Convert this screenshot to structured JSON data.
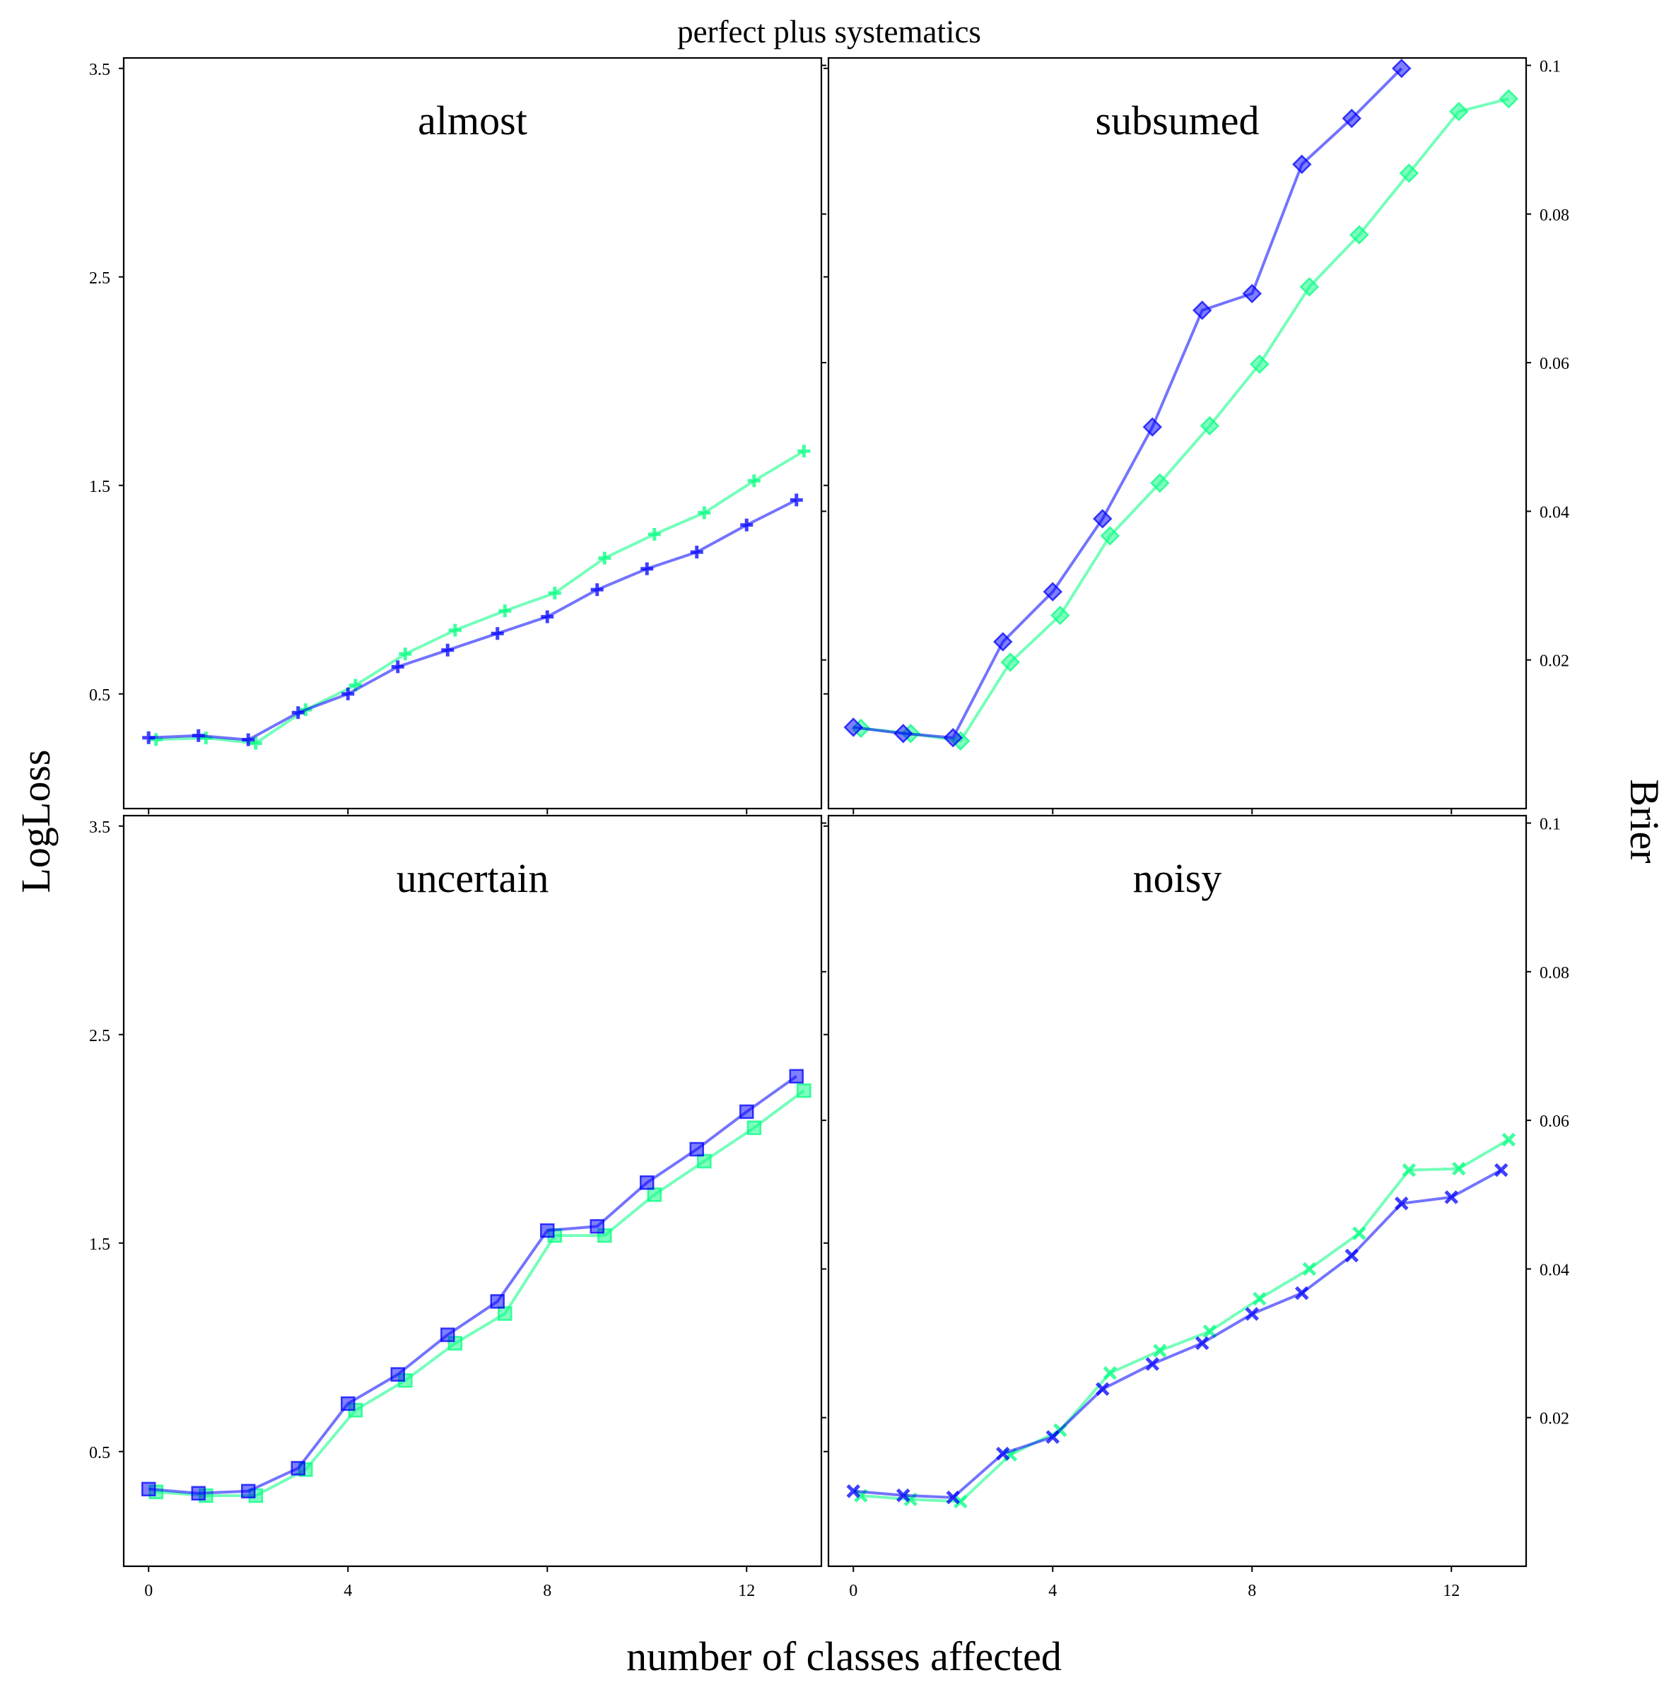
{
  "chart_data": {
    "type": "line",
    "title": "perfect plus systematics",
    "xlabel": "number of classes affected",
    "ylabel_left": "LogLoss",
    "ylabel_right": "Brier",
    "colors": {
      "logloss": "#0000ff",
      "brier": "#00ff7f"
    },
    "xlim": [
      -0.5,
      13.5
    ],
    "ylim_logloss": [
      -0.05,
      3.55
    ],
    "ylim_brier": [
      0.0,
      0.101
    ],
    "x_ticks": [
      0,
      4,
      8,
      12
    ],
    "y_ticks_logloss": [
      0.5,
      1.5,
      2.5,
      3.5
    ],
    "y_ticks_brier": [
      0.02,
      0.04,
      0.06,
      0.08,
      0.1
    ],
    "x_tick_labels": [
      "0",
      "4",
      "8",
      "12"
    ],
    "y_tick_labels_logloss": [
      "0.5",
      "1.5",
      "2.5",
      "3.5"
    ],
    "y_tick_labels_brier": [
      "0.02",
      "0.04",
      "0.06",
      "0.08",
      "0.1"
    ],
    "grid": false,
    "panels": [
      {
        "title": "almost",
        "marker": "plus",
        "series": [
          {
            "metric": "logloss",
            "x": [
              0,
              1,
              2,
              3,
              4,
              5,
              6,
              7,
              8,
              9,
              10,
              11,
              12,
              13
            ],
            "values": [
              0.29,
              0.3,
              0.28,
              0.41,
              0.5,
              0.63,
              0.71,
              0.79,
              0.87,
              1.0,
              1.1,
              1.18,
              1.31,
              1.43
            ]
          },
          {
            "metric": "brier",
            "x": [
              0,
              1,
              2,
              3,
              4,
              5,
              6,
              7,
              8,
              9,
              10,
              11,
              12,
              13
            ],
            "values": [
              0.0093,
              0.0095,
              0.0088,
              0.0133,
              0.0166,
              0.0208,
              0.024,
              0.0266,
              0.029,
              0.0337,
              0.0369,
              0.0398,
              0.0441,
              0.0481
            ]
          }
        ]
      },
      {
        "title": "subsumed",
        "marker": "diamond",
        "series": [
          {
            "metric": "logloss",
            "x": [
              0,
              1,
              2,
              3,
              4,
              5,
              6,
              7,
              8,
              9,
              10,
              11
            ],
            "values": [
              0.34,
              0.31,
              0.29,
              0.75,
              0.99,
              1.34,
              1.78,
              2.34,
              2.42,
              3.04,
              3.26,
              3.5
            ]
          },
          {
            "metric": "brier",
            "x": [
              0,
              1,
              2,
              3,
              4,
              5,
              6,
              7,
              8,
              9,
              10,
              11,
              12,
              13
            ],
            "values": [
              0.0108,
              0.0101,
              0.0091,
              0.0197,
              0.026,
              0.0367,
              0.0438,
              0.0515,
              0.0598,
              0.0702,
              0.0772,
              0.0855,
              0.0938,
              0.0955
            ]
          }
        ]
      },
      {
        "title": "uncertain",
        "marker": "square",
        "series": [
          {
            "metric": "logloss",
            "x": [
              0,
              1,
              2,
              3,
              4,
              5,
              6,
              7,
              8,
              9,
              10,
              11,
              12,
              13
            ],
            "values": [
              0.32,
              0.3,
              0.31,
              0.42,
              0.73,
              0.87,
              1.06,
              1.22,
              1.56,
              1.58,
              1.79,
              1.95,
              2.13,
              2.3
            ]
          },
          {
            "metric": "brier",
            "x": [
              0,
              1,
              2,
              3,
              4,
              5,
              6,
              7,
              8,
              9,
              10,
              11,
              12,
              13
            ],
            "values": [
              0.01,
              0.0095,
              0.0095,
              0.013,
              0.021,
              0.025,
              0.03,
              0.034,
              0.0445,
              0.0445,
              0.05,
              0.0545,
              0.059,
              0.064
            ]
          }
        ]
      },
      {
        "title": "noisy",
        "marker": "x",
        "series": [
          {
            "metric": "logloss",
            "x": [
              0,
              1,
              2,
              3,
              4,
              5,
              6,
              7,
              8,
              9,
              10,
              11,
              12,
              13
            ],
            "values": [
              0.31,
              0.29,
              0.28,
              0.49,
              0.57,
              0.8,
              0.92,
              1.02,
              1.16,
              1.26,
              1.44,
              1.69,
              1.72,
              1.85
            ]
          },
          {
            "metric": "brier",
            "x": [
              0,
              1,
              2,
              3,
              4,
              5,
              6,
              7,
              8,
              9,
              10,
              11,
              12,
              13
            ],
            "values": [
              0.0095,
              0.009,
              0.0087,
              0.015,
              0.0183,
              0.026,
              0.029,
              0.0316,
              0.036,
              0.04,
              0.0448,
              0.0533,
              0.0535,
              0.0574
            ]
          }
        ]
      }
    ]
  }
}
